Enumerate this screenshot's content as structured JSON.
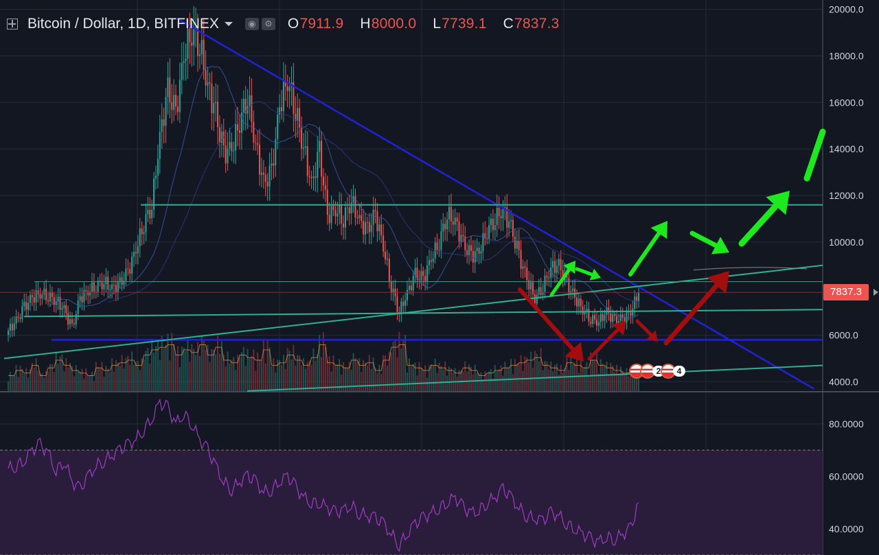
{
  "header": {
    "symbol_label": "Bitcoin / Dollar, 1D, BITFINEX",
    "open_key": "O",
    "open_value": "7911.9",
    "high_key": "H",
    "high_value": "8000.0",
    "low_key": "L",
    "low_value": "7739.1",
    "close_key": "C",
    "close_value": "7837.3"
  },
  "price_tag": "7837.3",
  "events": {
    "count_a": "2",
    "count_b": "4"
  },
  "colors": {
    "background": "#131722",
    "grid": "#262b38",
    "up": "#26a69a",
    "down": "#ef5350",
    "trendline_blue": "#2121d8",
    "support_teal": "#2fb092",
    "arrow_green": "#1ee81e",
    "arrow_red": "#a30d0d",
    "rsi_line": "#a03cc4",
    "rsi_band": "#2a1d3c",
    "axis_text": "#d1d4dc"
  },
  "chart_data": [
    {
      "type": "candlestick",
      "price_axis": {
        "ylim": [
          3600,
          20400
        ],
        "tick_labels": [
          "20000.0",
          "18000.0",
          "16000.0",
          "14000.0",
          "12000.0",
          "10000.0",
          "6000.0",
          "4000.0"
        ]
      },
      "last_price": 7837.3,
      "ohlc_path_close": [
        6200,
        6600,
        7200,
        7600,
        7800,
        7700,
        7500,
        7100,
        6300,
        7600,
        7900,
        8100,
        8300,
        8000,
        8200,
        8700,
        9700,
        10800,
        11600,
        14500,
        16500,
        15500,
        18000,
        19100,
        18500,
        16700,
        15500,
        13800,
        14000,
        15200,
        16300,
        14200,
        12500,
        13000,
        15800,
        17000,
        15700,
        14100,
        12400,
        13900,
        11100,
        11400,
        11000,
        11800,
        10900,
        10500,
        11200,
        9800,
        8100,
        7000,
        7800,
        8600,
        8400,
        9300,
        10000,
        11200,
        10900,
        9900,
        9400,
        9600,
        10500,
        11000,
        11400,
        10600,
        9400,
        8400,
        7600,
        8100,
        8900,
        9000,
        8200,
        7600,
        7100,
        6700,
        6600,
        7000,
        6600,
        6700,
        7000,
        7837.3
      ],
      "volume_relative": [
        0.3,
        0.4,
        0.35,
        0.5,
        0.3,
        0.45,
        0.6,
        0.5,
        0.4,
        0.35,
        0.3,
        0.45,
        0.4,
        0.5,
        0.55,
        0.6,
        0.5,
        0.7,
        0.8,
        0.85,
        0.9,
        0.7,
        0.8,
        0.75,
        0.9,
        0.7,
        0.85,
        0.6,
        0.55,
        0.7,
        0.65,
        0.6,
        0.8,
        0.5,
        0.55,
        0.7,
        0.6,
        0.5,
        0.65,
        0.9,
        0.55,
        0.5,
        0.45,
        0.6,
        0.5,
        0.55,
        0.4,
        0.6,
        0.85,
        0.9,
        0.5,
        0.45,
        0.4,
        0.5,
        0.45,
        0.4,
        0.35,
        0.45,
        0.4,
        0.3,
        0.35,
        0.4,
        0.45,
        0.5,
        0.55,
        0.6,
        0.65,
        0.5,
        0.45,
        0.4,
        0.55,
        0.5,
        0.45,
        0.6,
        0.5,
        0.45,
        0.4,
        0.35,
        0.4,
        0.5
      ],
      "drawn_lines": [
        {
          "kind": "descending-trendline",
          "from": 19600,
          "to": 3700,
          "color": "blue"
        },
        {
          "kind": "horizontal-resistance",
          "level": 11600,
          "color": "teal"
        },
        {
          "kind": "horizontal-support",
          "level": 5800,
          "color": "blue"
        },
        {
          "kind": "rising-support",
          "from": 5000,
          "to": 9000,
          "color": "teal"
        },
        {
          "kind": "horizontal-support",
          "level": 6800,
          "to": 7100,
          "color": "teal"
        },
        {
          "kind": "lower-rising-line",
          "from": 3600,
          "to": 4700,
          "color": "teal"
        }
      ],
      "annotations": "green and dark-red projection arrows"
    },
    {
      "type": "line",
      "series": [
        {
          "values": [
            63,
            64,
            66,
            70,
            72,
            69,
            62,
            66,
            58,
            55,
            60,
            64,
            66,
            68,
            70,
            72,
            74,
            78,
            82,
            88,
            86,
            80,
            84,
            80,
            74,
            70,
            64,
            58,
            55,
            58,
            60,
            58,
            54,
            55,
            58,
            60,
            56,
            52,
            50,
            50,
            48,
            46,
            47,
            49,
            46,
            45,
            44,
            42,
            38,
            34,
            38,
            42,
            44,
            46,
            48,
            50,
            52,
            48,
            46,
            47,
            50,
            52,
            55,
            52,
            48,
            45,
            44,
            43,
            46,
            45,
            42,
            40,
            38,
            36,
            35,
            37,
            36,
            38,
            40,
            50
          ]
        }
      ],
      "ylim": [
        30,
        92
      ],
      "tick_labels": [
        "80.0000",
        "60.0000",
        "40.0000"
      ],
      "band": [
        30,
        70
      ]
    }
  ]
}
